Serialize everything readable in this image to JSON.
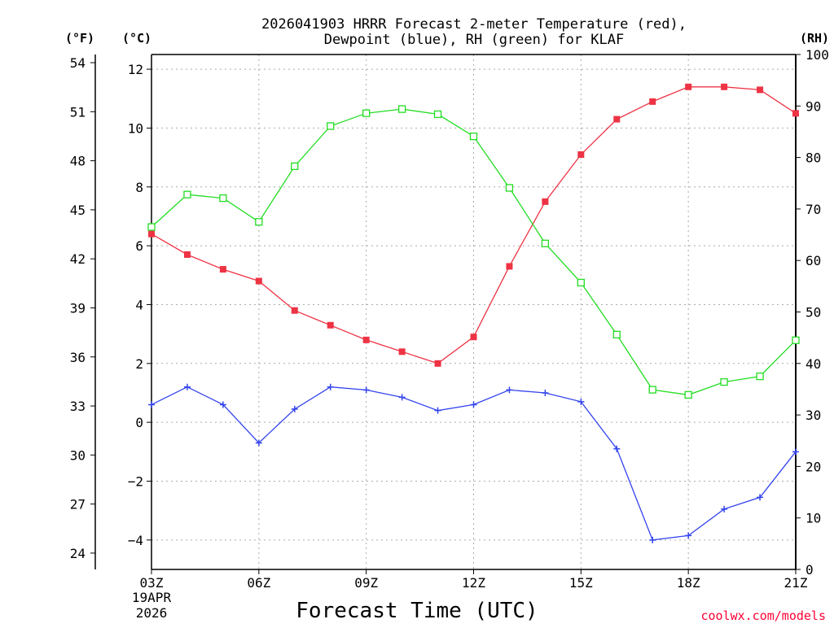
{
  "chart_data": {
    "type": "line",
    "title_line1": "2026041903 HRRR Forecast 2-meter Temperature (red),",
    "title_line2": "Dewpoint (blue), RH (green) for KLAF",
    "xlabel": "Forecast Time (UTC)",
    "watermark": "coolwx.com/models",
    "unit_labels": {
      "fahrenheit": "(°F)",
      "celsius": "(°C)",
      "rh": "(RH)"
    },
    "date_label": {
      "line1": "19APR",
      "line2": "2026"
    },
    "x": [
      3,
      4,
      5,
      6,
      7,
      8,
      9,
      10,
      11,
      12,
      13,
      14,
      15,
      16,
      17,
      18,
      19,
      20,
      21
    ],
    "x_ticks": [
      {
        "hour": 3,
        "label": "03Z"
      },
      {
        "hour": 6,
        "label": "06Z"
      },
      {
        "hour": 9,
        "label": "09Z"
      },
      {
        "hour": 12,
        "label": "12Z"
      },
      {
        "hour": 15,
        "label": "15Z"
      },
      {
        "hour": 18,
        "label": "18Z"
      },
      {
        "hour": 21,
        "label": "21Z"
      }
    ],
    "xlim": [
      3,
      21
    ],
    "ylim_celsius": [
      -5,
      12.5
    ],
    "celsius_ticks": [
      {
        "value": 12,
        "label": "12"
      },
      {
        "value": 10,
        "label": "10"
      },
      {
        "value": 8,
        "label": "8"
      },
      {
        "value": 6,
        "label": "6"
      },
      {
        "value": 4,
        "label": "4"
      },
      {
        "value": 2,
        "label": "2"
      },
      {
        "value": 0,
        "label": "0"
      },
      {
        "value": -2,
        "label": "−2"
      },
      {
        "value": -4,
        "label": "−4"
      }
    ],
    "fahrenheit_ticks": [
      {
        "value": 54,
        "label": "54"
      },
      {
        "value": 51,
        "label": "51"
      },
      {
        "value": 48,
        "label": "48"
      },
      {
        "value": 45,
        "label": "45"
      },
      {
        "value": 42,
        "label": "42"
      },
      {
        "value": 39,
        "label": "39"
      },
      {
        "value": 36,
        "label": "36"
      },
      {
        "value": 33,
        "label": "33"
      },
      {
        "value": 30,
        "label": "30"
      },
      {
        "value": 27,
        "label": "27"
      },
      {
        "value": 24,
        "label": "24"
      }
    ],
    "rh_ticks": [
      {
        "value": 100,
        "label": "100"
      },
      {
        "value": 90,
        "label": "90"
      },
      {
        "value": 80,
        "label": "80"
      },
      {
        "value": 70,
        "label": "70"
      },
      {
        "value": 60,
        "label": "60"
      },
      {
        "value": 50,
        "label": "50"
      },
      {
        "value": 40,
        "label": "40"
      },
      {
        "value": 30,
        "label": "30"
      },
      {
        "value": 20,
        "label": "20"
      },
      {
        "value": 10,
        "label": "10"
      },
      {
        "value": 0,
        "label": "0"
      }
    ],
    "series": [
      {
        "name": "Temperature",
        "axis": "celsius",
        "color": "#ee3344",
        "marker": "filled-square",
        "values": [
          6.4,
          5.7,
          5.2,
          4.8,
          3.8,
          3.3,
          2.8,
          2.4,
          2.0,
          2.9,
          5.3,
          7.5,
          9.1,
          10.3,
          10.9,
          11.4,
          11.4,
          11.3,
          10.5
        ]
      },
      {
        "name": "Dewpoint",
        "axis": "celsius",
        "color": "#3344ee",
        "marker": "plus",
        "values": [
          0.6,
          1.2,
          0.6,
          -0.7,
          0.45,
          1.2,
          1.1,
          0.85,
          0.4,
          0.6,
          1.1,
          1.0,
          0.7,
          -0.9,
          -4.0,
          -3.85,
          -2.95,
          -2.55,
          -1.0
        ]
      },
      {
        "name": "RH",
        "axis": "rh",
        "color": "#22dd22",
        "marker": "open-square",
        "values": [
          66.5,
          72.8,
          72.1,
          67.5,
          78.3,
          86.1,
          88.6,
          89.4,
          88.4,
          84.1,
          74.1,
          63.3,
          55.7,
          45.6,
          34.9,
          33.9,
          36.4,
          37.5,
          44.5
        ]
      }
    ]
  }
}
